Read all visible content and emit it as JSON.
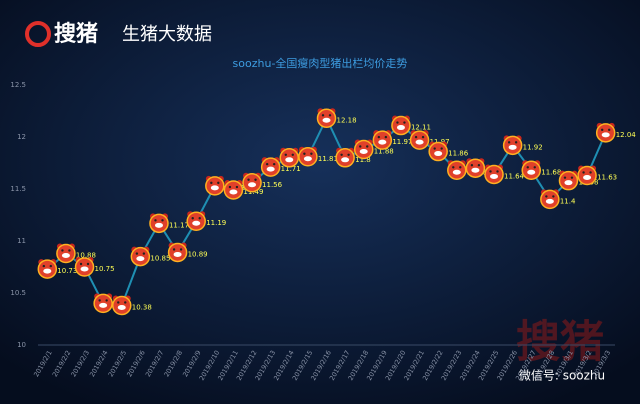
{
  "header": {
    "logo_text": "搜猪",
    "brand": "生猪大数据"
  },
  "chart_data": {
    "type": "line",
    "title": "soozhu-全国瘦肉型猪出栏均价走势",
    "categories": [
      "2019/2/1",
      "2019/2/2",
      "2019/2/3",
      "2019/2/4",
      "2019/2/5",
      "2019/2/6",
      "2019/2/7",
      "2019/2/8",
      "2019/2/9",
      "2019/2/10",
      "2019/2/11",
      "2019/2/12",
      "2019/2/13",
      "2019/2/14",
      "2019/2/15",
      "2019/2/16",
      "2019/2/17",
      "2019/2/18",
      "2019/2/19",
      "2019/2/20",
      "2019/2/21",
      "2019/2/22",
      "2019/2/23",
      "2019/2/24",
      "2019/2/25",
      "2019/2/26",
      "2019/2/27",
      "2019/2/28",
      "2019/3/1",
      "2019/3/2",
      "2019/3/3"
    ],
    "series": [
      {
        "name": "均价",
        "color": "#1f8fb3",
        "values": [
          10.73,
          10.88,
          10.75,
          10.4,
          10.38,
          10.85,
          11.17,
          10.89,
          11.19,
          11.53,
          11.49,
          11.56,
          11.71,
          11.8,
          11.81,
          12.18,
          11.8,
          11.88,
          11.97,
          12.11,
          11.97,
          11.86,
          11.68,
          11.7,
          11.64,
          11.92,
          11.68,
          11.4,
          11.58,
          11.63,
          12.04
        ]
      }
    ],
    "ylim": [
      10,
      12.5
    ],
    "yticks": [
      10,
      10.5,
      11,
      11.5,
      12,
      12.5
    ],
    "grid": false,
    "value_label_color": "#ffff55"
  },
  "watermark": {
    "logo": "搜猪",
    "wechat": "微信号: soozhu"
  }
}
